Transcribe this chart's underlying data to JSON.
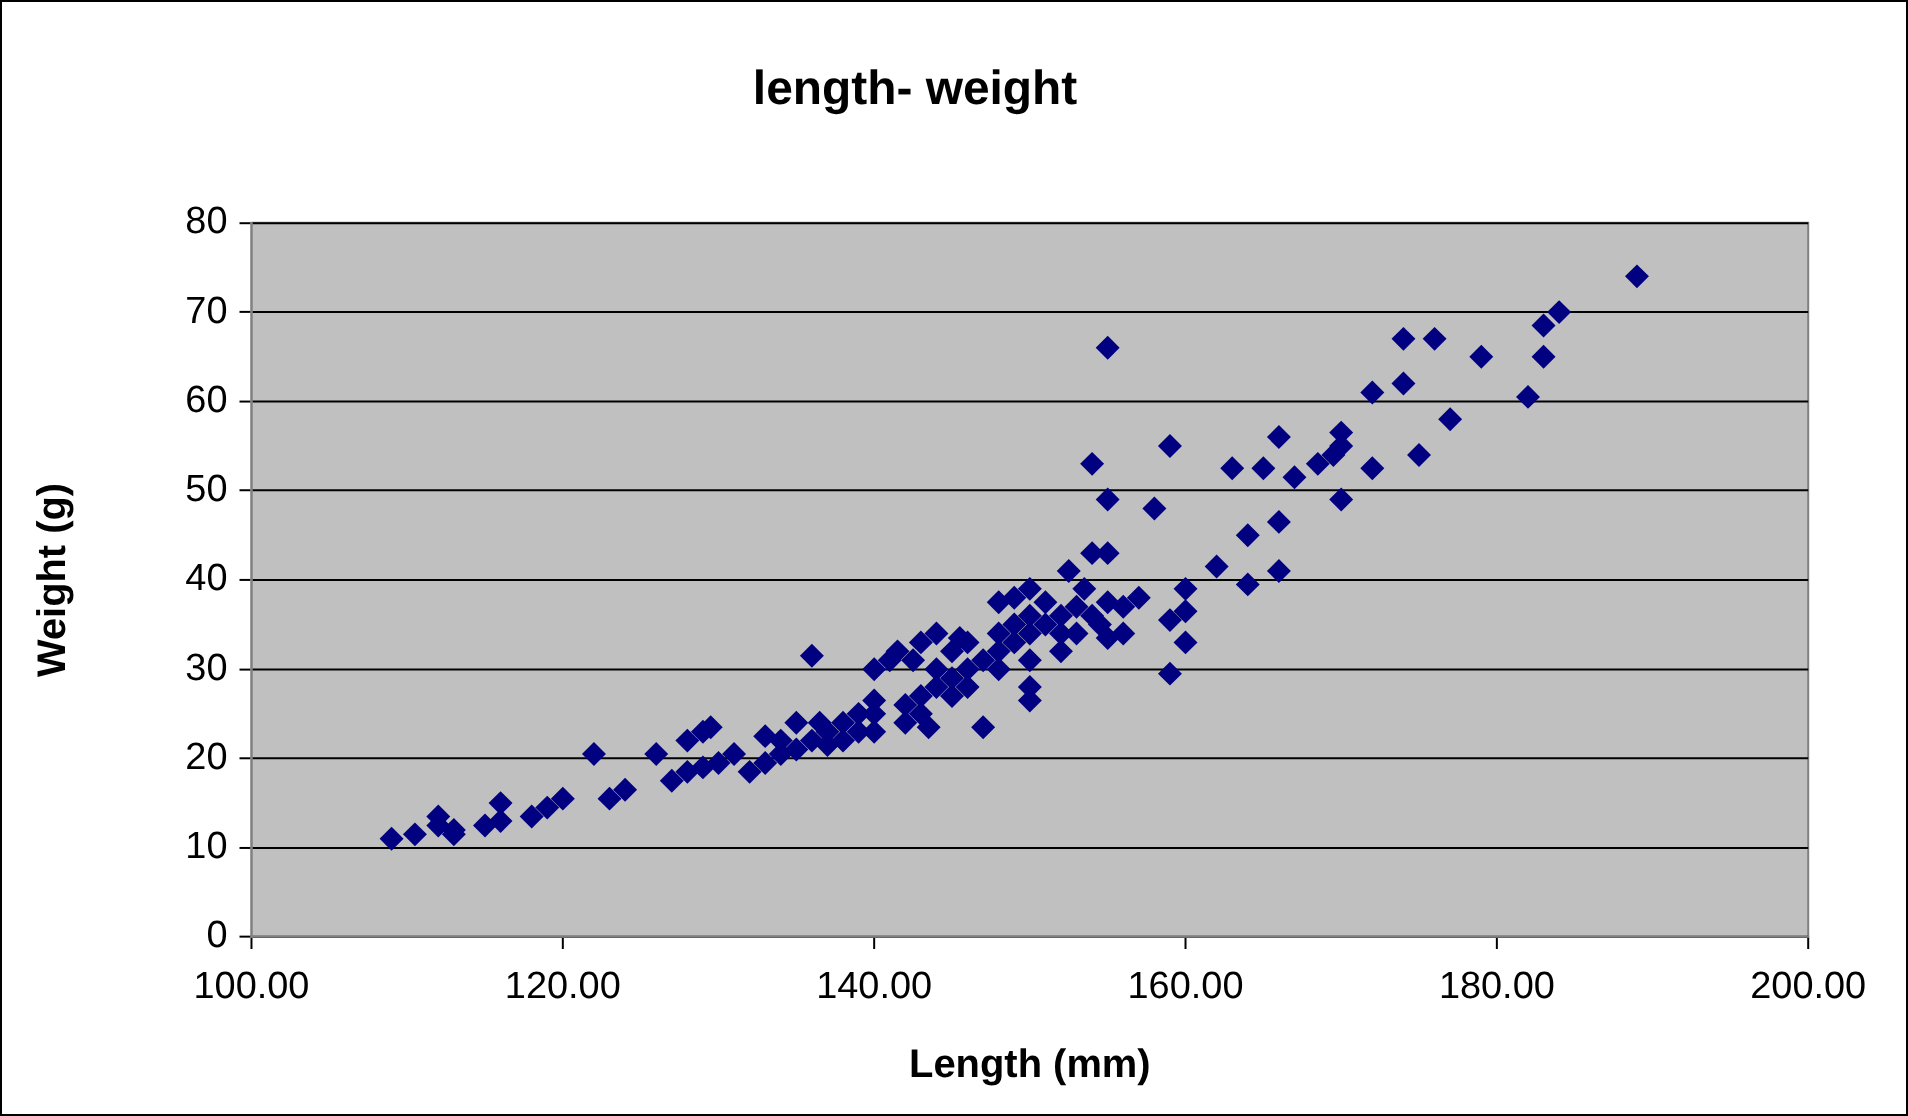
{
  "chart_data": {
    "type": "scatter",
    "title": "length- weight",
    "xlabel": "Length (mm)",
    "ylabel": "Weight (g)",
    "xlim": [
      100,
      200
    ],
    "xticks": [
      {
        "value": 100,
        "label": "100.00"
      },
      {
        "value": 120,
        "label": "120.00"
      },
      {
        "value": 140,
        "label": "140.00"
      },
      {
        "value": 160,
        "label": "160.00"
      },
      {
        "value": 180,
        "label": "180.00"
      },
      {
        "value": 200,
        "label": "200.00"
      }
    ],
    "ylim": [
      0,
      80
    ],
    "yticks": [
      0,
      10,
      20,
      30,
      40,
      50,
      60,
      70,
      80
    ],
    "grid": "y",
    "legend": false,
    "marker": "diamond",
    "series": [
      {
        "color": "#000080",
        "x": [
          109,
          110.5,
          112,
          112,
          113,
          113,
          115,
          116,
          116,
          118,
          119,
          120,
          122,
          123,
          124,
          126,
          127,
          128,
          128,
          129,
          129,
          129.5,
          130,
          131,
          132,
          133,
          133,
          134,
          134,
          135,
          135,
          136,
          136,
          136.5,
          137,
          137,
          138,
          138,
          139,
          139,
          140,
          140,
          140,
          140,
          141,
          141.5,
          142,
          142,
          142.5,
          143,
          143,
          143,
          143.5,
          144,
          144,
          144,
          145,
          145,
          145,
          145.5,
          146,
          146,
          146,
          147,
          147,
          148,
          148,
          148,
          148,
          149,
          149,
          149,
          150,
          150,
          150,
          150,
          150,
          150,
          151,
          151,
          152,
          152,
          152,
          152.5,
          153,
          153,
          153.5,
          154,
          154,
          154,
          154.5,
          155,
          155,
          155,
          155,
          155,
          156,
          156,
          157,
          158,
          159,
          159,
          159,
          160,
          160,
          160,
          162,
          163,
          164,
          164,
          165,
          166,
          166,
          166,
          167,
          168.5,
          169.5,
          170,
          170,
          170,
          172,
          172,
          174,
          174,
          175,
          176,
          177,
          179,
          182,
          183,
          183,
          184,
          189
        ],
        "values": [
          11,
          11.5,
          12.5,
          13.5,
          12,
          11.5,
          12.5,
          13,
          15,
          13.5,
          14.5,
          15.5,
          20.5,
          15.5,
          16.5,
          20.5,
          17.5,
          18.5,
          22,
          23,
          19,
          23.5,
          19.5,
          20.5,
          18.5,
          19.5,
          22.5,
          20.5,
          22,
          21,
          24,
          31.5,
          22,
          24,
          21.5,
          23,
          22,
          24,
          23,
          25,
          23,
          25,
          26.5,
          30,
          31,
          32,
          24,
          26,
          31,
          25,
          27,
          33,
          23.5,
          28,
          30,
          34,
          27,
          29,
          32,
          33.5,
          28,
          30,
          33,
          23.5,
          31,
          30,
          32,
          34,
          37.5,
          33,
          35,
          38,
          26.5,
          28,
          31,
          34,
          36,
          39,
          35,
          37.5,
          32,
          34,
          36,
          41,
          34,
          37,
          39,
          36,
          43,
          53,
          35,
          33.5,
          37.5,
          43,
          49,
          66,
          34,
          37,
          38,
          48,
          29.5,
          35.5,
          55,
          33,
          36.5,
          39,
          41.5,
          52.5,
          39.5,
          45,
          52.5,
          41,
          46.5,
          56,
          51.5,
          53,
          54,
          49,
          55,
          56.5,
          52.5,
          61,
          62,
          67,
          54,
          67,
          58,
          65,
          60.5,
          65,
          68.5,
          70,
          74
        ]
      }
    ]
  }
}
